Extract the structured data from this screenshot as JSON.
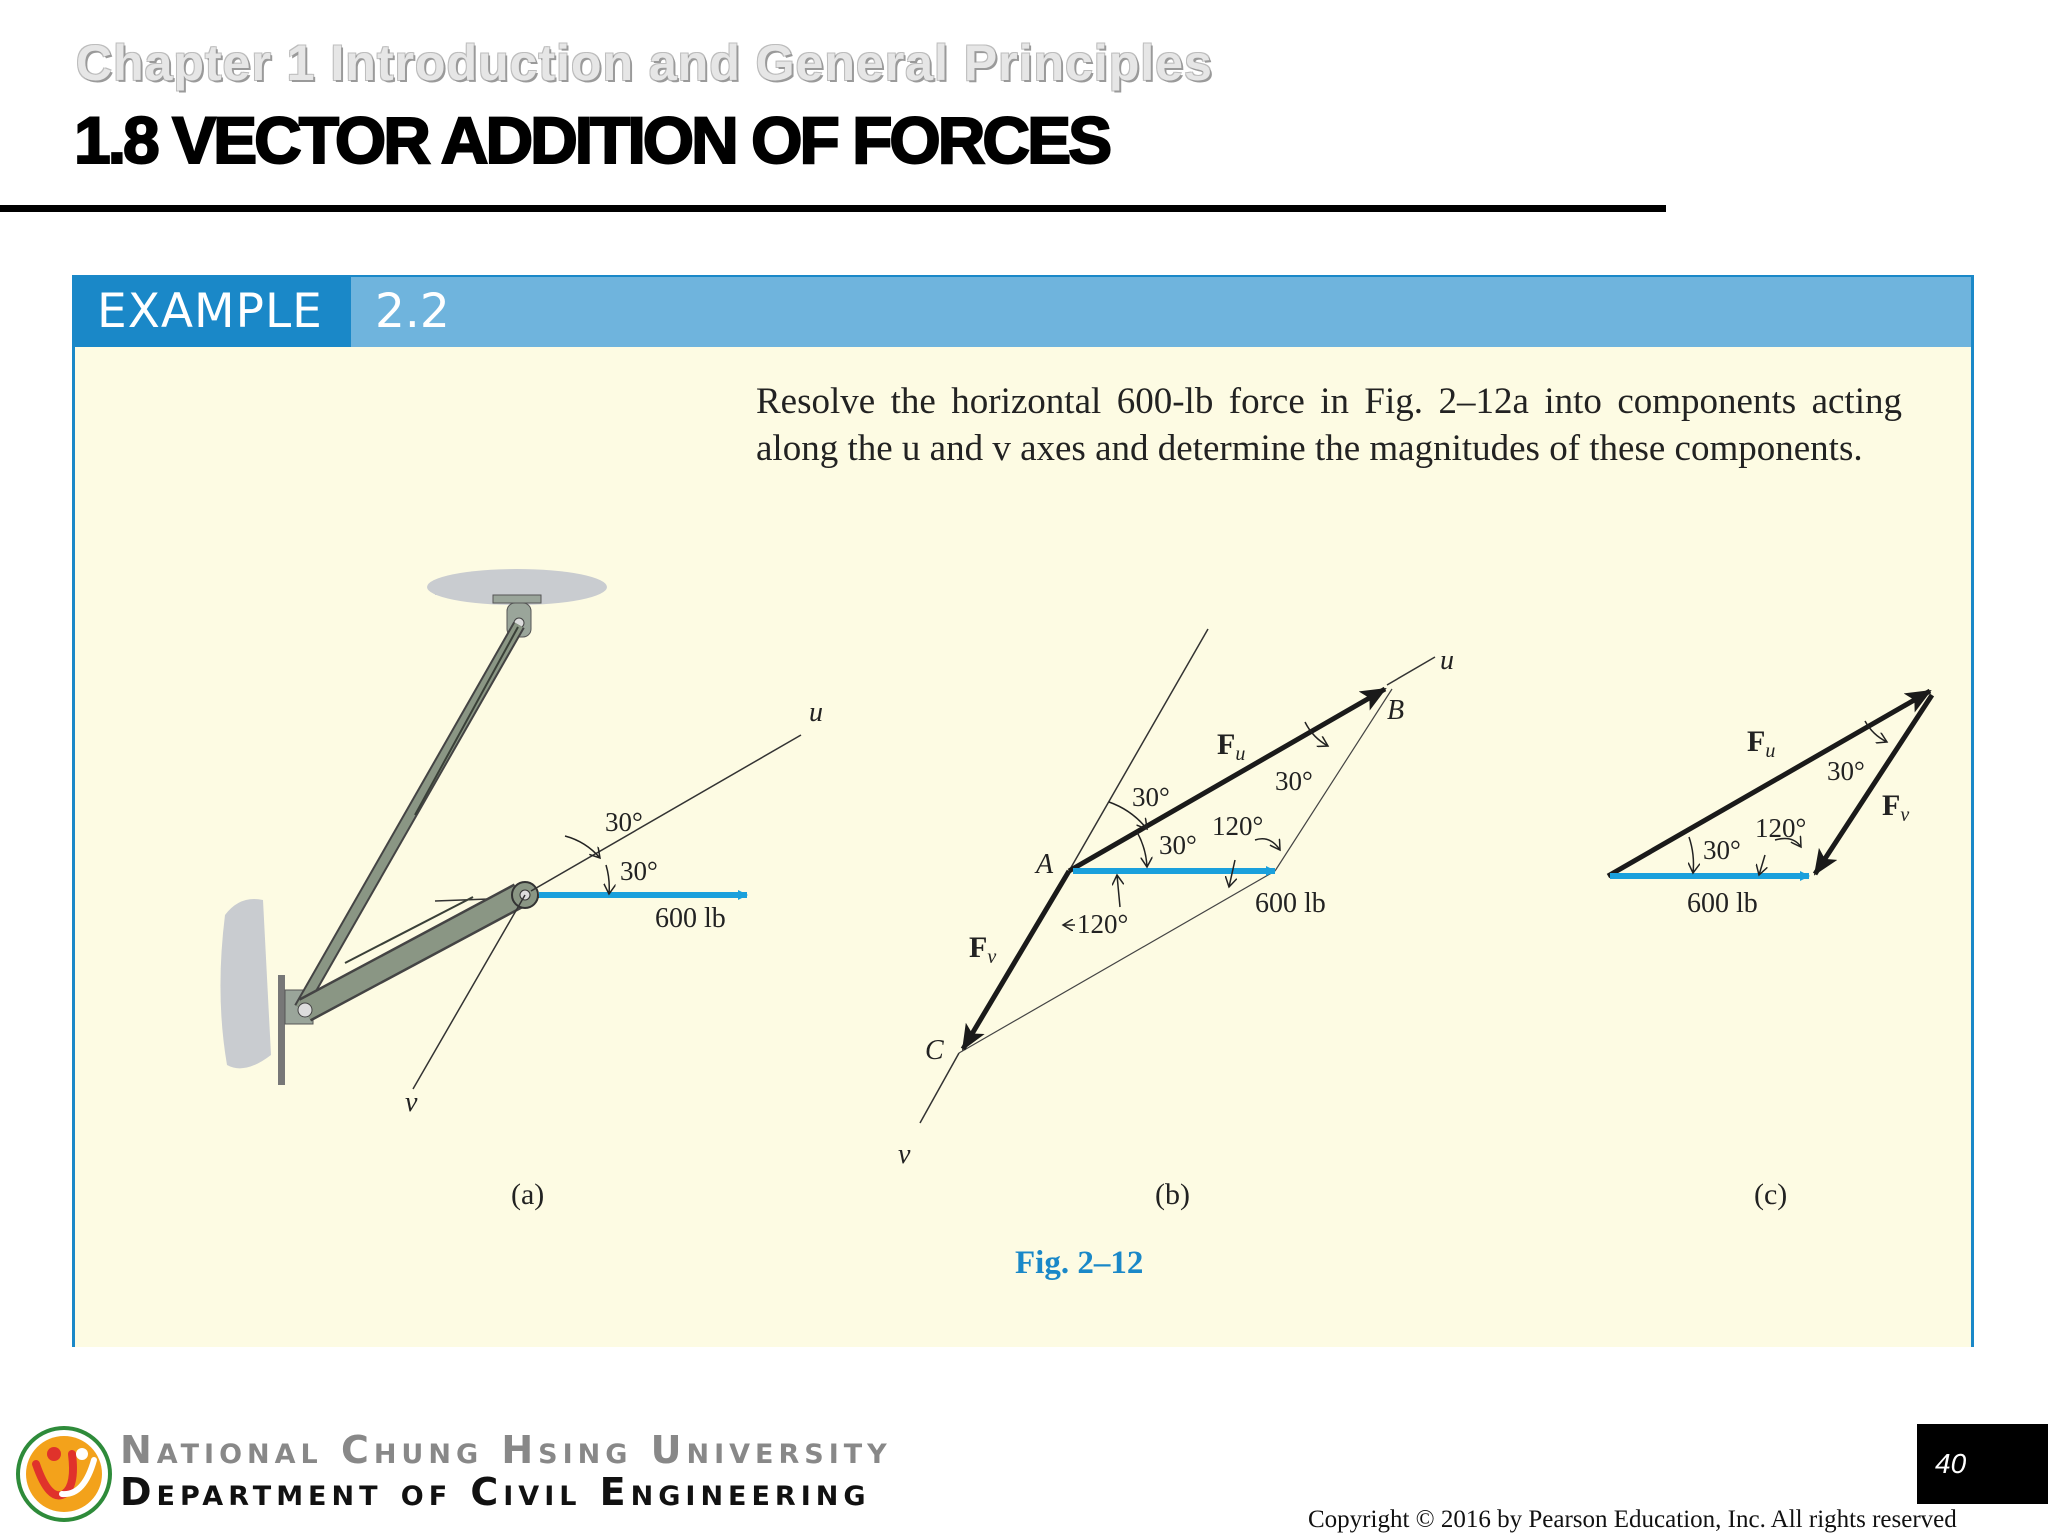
{
  "slide": {
    "chapter": "Chapter 1 Introduction and General Principles",
    "title": "1.8 VECTOR ADDITION OF FORCES",
    "page_number": "40",
    "copyright": "Copyright © 2016 by Pearson Education, Inc. All rights reserved"
  },
  "example": {
    "label": "EXAMPLE",
    "number": "2.2",
    "problem": "Resolve the horizontal 600-lb force in Fig. 2–12a into components acting along the u and v axes and determine the magnitudes of these components."
  },
  "figure": {
    "caption": "Fig. 2–12",
    "force_label": "600 lb",
    "angle_30": "30°",
    "angle_120": "120°",
    "axis_u": "u",
    "axis_v": "v",
    "force_u": "F",
    "force_u_sub": "u",
    "force_v": "F",
    "force_v_sub": "v",
    "point_a": "A",
    "point_b": "B",
    "point_c": "C",
    "panel_a": "(a)",
    "panel_b": "(b)",
    "panel_c": "(c)",
    "colors": {
      "force_arrow": "#1aa0dc",
      "vector": "#1a1a1a",
      "member": "#8a9684"
    }
  },
  "footer": {
    "university": "National Chung Hsing University",
    "department": "Department of Civil Engineering"
  }
}
